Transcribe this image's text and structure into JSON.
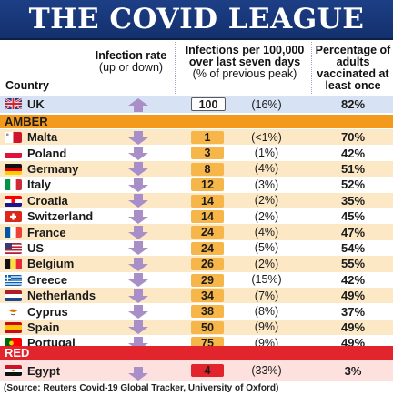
{
  "title": "THE COVID LEAGUE",
  "headers": {
    "country": "Country",
    "rate_title": "Infection rate",
    "rate_sub": "(up or down)",
    "infections_title": "Infections per 100,000 over last seven days",
    "infections_sub": "(% of previous peak)",
    "vaccinated": "Percentage of adults vaccinated at least once"
  },
  "uk": {
    "country": "UK",
    "direction": "up",
    "infections": "100",
    "prev_peak": "(16%)",
    "vaccinated": "82%"
  },
  "amber_label": "AMBER",
  "amber_rows": [
    {
      "country": "Malta",
      "direction": "down",
      "infections": "1",
      "prev_peak": "(<1%)",
      "vaccinated": "70%",
      "flag": "malta-flag-icon"
    },
    {
      "country": "Poland",
      "direction": "down",
      "infections": "3",
      "prev_peak": "(1%)",
      "vaccinated": "42%",
      "flag": "poland-flag-icon"
    },
    {
      "country": "Germany",
      "direction": "down",
      "infections": "8",
      "prev_peak": "(4%)",
      "vaccinated": "51%",
      "flag": "germany-flag-icon"
    },
    {
      "country": "Italy",
      "direction": "down",
      "infections": "12",
      "prev_peak": "(3%)",
      "vaccinated": "52%",
      "flag": "italy-flag-icon"
    },
    {
      "country": "Croatia",
      "direction": "down",
      "infections": "14",
      "prev_peak": "(2%)",
      "vaccinated": "35%",
      "flag": "croatia-flag-icon"
    },
    {
      "country": "Switzerland",
      "direction": "down",
      "infections": "14",
      "prev_peak": "(2%)",
      "vaccinated": "45%",
      "flag": "switzerland-flag-icon"
    },
    {
      "country": "France",
      "direction": "down",
      "infections": "24",
      "prev_peak": "(4%)",
      "vaccinated": "47%",
      "flag": "france-flag-icon"
    },
    {
      "country": "US",
      "direction": "down",
      "infections": "24",
      "prev_peak": "(5%)",
      "vaccinated": "54%",
      "flag": "us-flag-icon"
    },
    {
      "country": "Belgium",
      "direction": "down",
      "infections": "26",
      "prev_peak": "(2%)",
      "vaccinated": "55%",
      "flag": "belgium-flag-icon"
    },
    {
      "country": "Greece",
      "direction": "down",
      "infections": "29",
      "prev_peak": "(15%)",
      "vaccinated": "42%",
      "flag": "greece-flag-icon"
    },
    {
      "country": "Netherlands",
      "direction": "down",
      "infections": "34",
      "prev_peak": "(7%)",
      "vaccinated": "49%",
      "flag": "netherlands-flag-icon"
    },
    {
      "country": "Cyprus",
      "direction": "down",
      "infections": "38",
      "prev_peak": "(8%)",
      "vaccinated": "37%",
      "flag": "cyprus-flag-icon"
    },
    {
      "country": "Spain",
      "direction": "down",
      "infections": "50",
      "prev_peak": "(9%)",
      "vaccinated": "49%",
      "flag": "spain-flag-icon"
    },
    {
      "country": "Portugal",
      "direction": "down",
      "infections": "75",
      "prev_peak": "(9%)",
      "vaccinated": "49%",
      "flag": "portugal-flag-icon"
    }
  ],
  "red_label": "RED",
  "egypt": {
    "country": "Egypt",
    "direction": "down",
    "infections": "4",
    "prev_peak": "(33%)",
    "vaccinated": "3%"
  },
  "source": "(Source: Reuters Covid-19 Global Tracker, University of Oxford)",
  "colors": {
    "title_bg": "#1d3f86",
    "amber": "#f39a1d",
    "amber_row": "#fde8c6",
    "red": "#e2242c",
    "uk_row": "#d7e3f4",
    "arrow": "#a98fc8"
  }
}
